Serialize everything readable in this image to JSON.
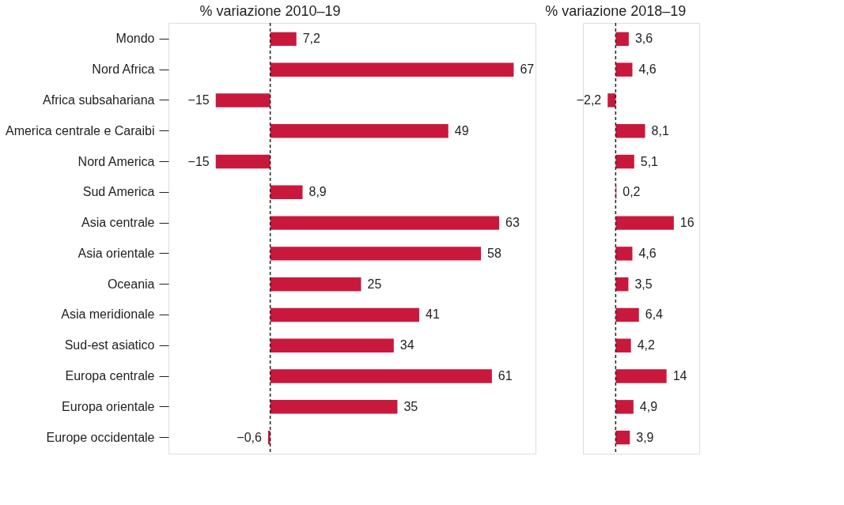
{
  "chart_data": [
    {
      "type": "bar",
      "orientation": "horizontal",
      "title": "% variazione 2010–19",
      "categories": [
        "Mondo",
        "Nord Africa",
        "Africa subsahariana",
        "America centrale e Caraibi",
        "Nord America",
        "Sud America",
        "Asia centrale",
        "Asia orientale",
        "Oceania",
        "Asia meridionale",
        "Sud-est asiatico",
        "Europa centrale",
        "Europa orientale",
        "Europe occidentale"
      ],
      "values": [
        7.2,
        67,
        -15,
        49,
        -15,
        8.9,
        63,
        58,
        25,
        41,
        34,
        61,
        35,
        -0.6
      ],
      "value_labels": [
        "7,2",
        "67",
        "−15",
        "49",
        "−15",
        "8,9",
        "63",
        "58",
        "25",
        "41",
        "34",
        "61",
        "35",
        "−0,6"
      ],
      "color": "#c8193c",
      "xlim": [
        -28,
        73
      ],
      "tick_labels": "y",
      "grid": false,
      "ref_lines": [
        {
          "axis": "x",
          "value": 0,
          "line_style": "dashed",
          "color": "#222222"
        }
      ]
    },
    {
      "type": "bar",
      "orientation": "horizontal",
      "title": "% variazione 2018–19",
      "values": [
        3.6,
        4.6,
        -2.2,
        8.1,
        5.1,
        0.2,
        16,
        4.6,
        3.5,
        6.4,
        4.2,
        14,
        4.9,
        3.9
      ],
      "value_labels": [
        "3,6",
        "4,6",
        "−2,2",
        "8,1",
        "5,1",
        "0,2",
        "16",
        "4,6",
        "3,5",
        "6,4",
        "4,2",
        "14",
        "4,9",
        "3,9"
      ],
      "color": "#c8193c",
      "xlim": [
        -9,
        23
      ],
      "tick_labels": false,
      "grid": false,
      "ref_lines": [
        {
          "axis": "x",
          "value": 0,
          "line_style": "dashed",
          "color": "#222222"
        }
      ]
    }
  ]
}
